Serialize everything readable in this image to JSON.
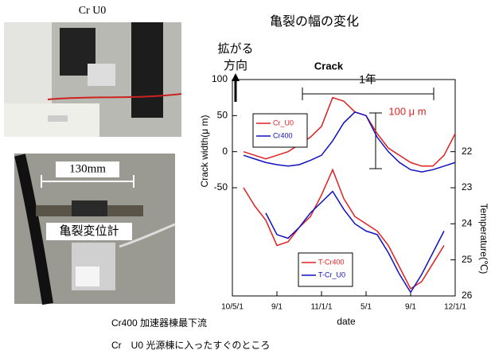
{
  "page": {
    "photo_label": "Cr U0",
    "scale_label": "130mm",
    "sensor_label": "亀裂変位計",
    "captions": [
      "Cr400 加速器棟最下流",
      "Cr　U0 光源棟に入ったすぐのところ"
    ]
  },
  "chart_data": {
    "type": "line",
    "title": "亀裂の幅の変化",
    "annotations": {
      "direction": [
        "拡がる",
        "方向"
      ],
      "crack": "Crack",
      "year": "1年",
      "span": "100 μ m"
    },
    "x_label": "date",
    "y_label": "Crack width(μ m)",
    "y2_label": "Temperature(℃)",
    "x": [
      0,
      1,
      2,
      3,
      4,
      5,
      6,
      7,
      8,
      9,
      10,
      11,
      12,
      13,
      14,
      15,
      16,
      17,
      18,
      19,
      20
    ],
    "xlim": [
      0,
      20
    ],
    "xticks": [
      {
        "value": 0,
        "label": "10/5/1"
      },
      {
        "value": 4,
        "label": "9/1"
      },
      {
        "value": 8,
        "label": "11/1/1"
      },
      {
        "value": 12,
        "label": "5/1"
      },
      {
        "value": 16,
        "label": "9/1"
      },
      {
        "value": 20,
        "label": "12/1/1"
      }
    ],
    "ylim": [
      -200,
      100
    ],
    "yticks": [
      -50,
      0,
      50,
      100
    ],
    "y2lim": [
      26,
      20
    ],
    "y2ticks": [
      22,
      23,
      24,
      25,
      26
    ],
    "series": [
      {
        "name": "Cr_U0",
        "color": "#e02020",
        "legend": "upper left",
        "values": [
          null,
          0,
          -5,
          -10,
          -5,
          0,
          10,
          20,
          35,
          75,
          70,
          55,
          50,
          25,
          5,
          -5,
          -15,
          -20,
          -20,
          -5,
          25
        ]
      },
      {
        "name": "Cr400",
        "color": "#1010c0",
        "legend": "upper left",
        "values": [
          null,
          -5,
          -10,
          -15,
          -18,
          -20,
          -18,
          -12,
          -5,
          15,
          40,
          55,
          50,
          20,
          0,
          -15,
          -25,
          -28,
          -25,
          -20,
          -15
        ]
      },
      {
        "name": "T-Cr400",
        "color": "#e02020",
        "axis": "y2",
        "legend": "lower left",
        "values": [
          null,
          23.0,
          23.5,
          23.9,
          24.6,
          24.5,
          24.1,
          23.8,
          23.2,
          22.5,
          23.3,
          23.8,
          24.0,
          24.2,
          24.6,
          25.2,
          25.8,
          25.6,
          25.1,
          24.6,
          null
        ]
      },
      {
        "name": "T-Cr_U0",
        "color": "#1010c0",
        "axis": "y2",
        "legend": "lower left",
        "values": [
          null,
          null,
          null,
          23.7,
          24.3,
          24.4,
          24.1,
          23.7,
          23.4,
          23.1,
          23.6,
          24.0,
          24.2,
          24.3,
          24.8,
          25.4,
          25.9,
          25.4,
          24.8,
          24.2,
          null
        ]
      }
    ]
  }
}
